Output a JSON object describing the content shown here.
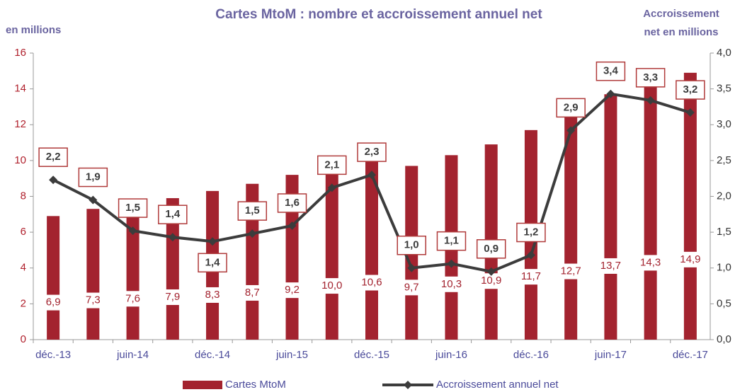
{
  "chart_data": {
    "type": "bar_line",
    "title": "Cartes MtoM : nombre et accroissement annuel net",
    "y_label": "en millions",
    "y2_label": [
      "Accroissement",
      "net en millions"
    ],
    "categories": [
      "déc.-13",
      null,
      "juin-14",
      null,
      "déc.-14",
      null,
      "juin-15",
      null,
      "déc.-15",
      null,
      "juin-16",
      null,
      "déc.-16",
      null,
      "juin-17",
      null,
      "déc.-17"
    ],
    "series": [
      {
        "name": "Cartes MtoM",
        "type": "bar",
        "color": "#a3232f",
        "values": [
          6.9,
          7.3,
          7.6,
          7.9,
          8.3,
          8.7,
          9.2,
          10.0,
          10.6,
          9.7,
          10.3,
          10.9,
          11.7,
          12.7,
          13.7,
          14.3,
          14.9
        ],
        "value_labels": [
          "6,9",
          "7,3",
          "7,6",
          "7,9",
          "8,3",
          "8,7",
          "9,2",
          "10,0",
          "10,6",
          "9,7",
          "10,3",
          "10,9",
          "11,7",
          "12,7",
          "13,7",
          "14,3",
          "14,9"
        ]
      },
      {
        "name": "Accroissement annuel net",
        "type": "line",
        "axis": "y2",
        "color": "#3c3c3c",
        "values": [
          2.23,
          1.95,
          1.52,
          1.43,
          1.37,
          1.48,
          1.59,
          2.12,
          2.3,
          1.0,
          1.06,
          0.95,
          1.18,
          2.92,
          3.43,
          3.34,
          3.17
        ],
        "value_labels": [
          "2,2",
          "1,9",
          "1,5",
          "1,4",
          "1,4",
          "1,5",
          "1,6",
          "2,1",
          "2,3",
          "1,0",
          "1,1",
          "0,9",
          "1,2",
          "2,9",
          "3,4",
          "3,3",
          "3,2"
        ]
      }
    ],
    "ylim": [
      0,
      16
    ],
    "yticks": [
      0,
      2,
      4,
      6,
      8,
      10,
      12,
      14,
      16
    ],
    "y2lim": [
      0,
      4
    ],
    "y2ticks": [
      {
        "value": 0,
        "label": "0,0"
      },
      {
        "value": 0.5,
        "label": "0,5"
      },
      {
        "value": 1,
        "label": "1,0"
      },
      {
        "value": 1.5,
        "label": "1,5"
      },
      {
        "value": 2,
        "label": "2,0"
      },
      {
        "value": 2.5,
        "label": "2,5"
      },
      {
        "value": 3,
        "label": "3,0"
      },
      {
        "value": 3.5,
        "label": "3,5"
      },
      {
        "value": 4,
        "label": "4,0"
      }
    ],
    "legend": "bottom"
  }
}
